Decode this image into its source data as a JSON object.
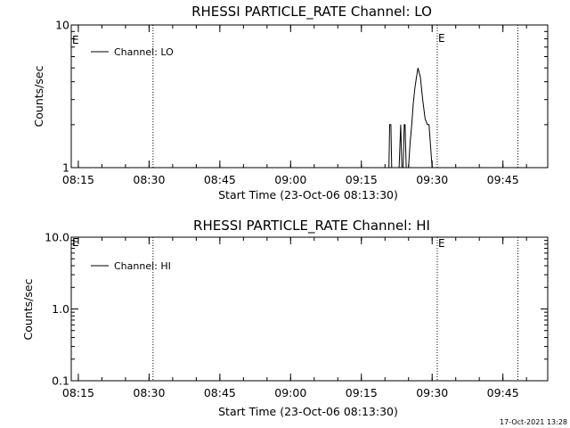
{
  "chart_data": [
    {
      "type": "line",
      "title": "RHESSI PARTICLE_RATE Channel: LO",
      "xlabel": "Start Time (23-Oct-06 08:13:30)",
      "ylabel": "Counts/sec",
      "yscale": "log",
      "ylim": [
        1,
        10
      ],
      "xlim": [
        "08:13:30",
        "09:54:30"
      ],
      "x_ticks": [
        "08:15",
        "08:30",
        "08:45",
        "09:00",
        "09:15",
        "09:30",
        "09:45"
      ],
      "y_ticks": [
        "1",
        "10"
      ],
      "legend": {
        "label": "Channel: LO",
        "position": "top-left"
      },
      "event_markers": [
        {
          "time": "08:30:50",
          "label": ""
        },
        {
          "time": "09:31:05",
          "label": "E"
        },
        {
          "time": "09:48:10",
          "label": ""
        }
      ],
      "corner_label": "E",
      "series": [
        {
          "name": "Channel: LO",
          "x": [
            "09:20:50",
            "09:21:00",
            "09:21:15",
            "09:21:25",
            "09:21:45",
            "09:23:00",
            "09:23:20",
            "09:23:35",
            "09:23:50",
            "09:24:05",
            "09:24:15",
            "09:24:30",
            "09:24:40",
            "09:25:00",
            "09:25:20",
            "09:25:40",
            "09:26:00",
            "09:26:20",
            "09:26:40",
            "09:27:00",
            "09:27:30",
            "09:28:00",
            "09:28:30",
            "09:29:00",
            "09:29:20",
            "09:29:40",
            "09:30:00",
            "09:30:10",
            "09:30:20"
          ],
          "y": [
            1,
            2,
            2,
            1,
            1,
            1,
            2,
            1,
            1,
            2,
            2,
            1,
            1,
            1,
            1.5,
            2,
            2.8,
            3.6,
            4.3,
            5.0,
            4.3,
            3.0,
            2.2,
            2.0,
            2.0,
            1.4,
            1,
            1,
            1
          ]
        }
      ]
    },
    {
      "type": "line",
      "title": "RHESSI PARTICLE_RATE Channel: HI",
      "xlabel": "Start Time (23-Oct-06 08:13:30)",
      "ylabel": "Counts/sec",
      "yscale": "log",
      "ylim": [
        0.1,
        10
      ],
      "xlim": [
        "08:13:30",
        "09:54:30"
      ],
      "x_ticks": [
        "08:15",
        "08:30",
        "08:45",
        "09:00",
        "09:15",
        "09:30",
        "09:45"
      ],
      "y_ticks": [
        "0.1",
        "1.0",
        "10.0"
      ],
      "legend": {
        "label": "Channel: HI",
        "position": "top-left"
      },
      "event_markers": [
        {
          "time": "08:30:50",
          "label": ""
        },
        {
          "time": "09:31:05",
          "label": "E"
        },
        {
          "time": "09:48:10",
          "label": ""
        }
      ],
      "corner_label": "E",
      "series": [
        {
          "name": "Channel: HI",
          "x": [],
          "y": []
        }
      ]
    }
  ],
  "timestamp": "17-Oct-2021 13:28"
}
